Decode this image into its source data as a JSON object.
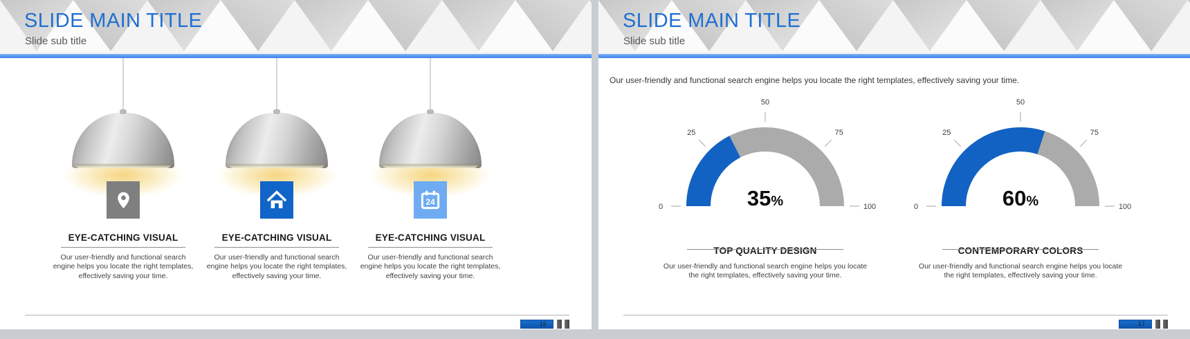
{
  "colors": {
    "title_blue": "#1f6fd2",
    "accent_bar_blue": "#4189f0",
    "heading_text": "#1a1a1a",
    "body_text": "#3f3f3f",
    "gauge_blue": "#1262c4",
    "gauge_track_gray": "#ababab",
    "icon_gray": "#7f7f7f",
    "icon_blue": "#1164c8",
    "icon_light_blue": "#6fabf2",
    "page_badge_blue": "#1565c4",
    "lamp_glow_yellow": "#f5d276"
  },
  "slides": [
    {
      "name": "lamps-slide",
      "title": "SLIDE MAIN TITLE",
      "subtitle": "Slide sub title",
      "page_number": "16",
      "columns": [
        {
          "icon": "location-pin-icon",
          "heading": "EYE-CATCHING VISUAL",
          "body": "Our user-friendly and functional search engine helps you locate the right templates, effectively saving your time."
        },
        {
          "icon": "home-icon",
          "heading": "EYE-CATCHING VISUAL",
          "body": "Our user-friendly and functional search engine helps you locate the right templates, effectively saving your time."
        },
        {
          "icon": "calendar-icon",
          "calendar_day": "24",
          "heading": "EYE-CATCHING VISUAL",
          "body": "Our user-friendly and functional search engine helps you locate the right templates, effectively saving your time."
        }
      ]
    },
    {
      "name": "gauges-slide",
      "title": "SLIDE MAIN TITLE",
      "subtitle": "Slide sub title",
      "intro": "Our user-friendly and functional search engine helps you locate the right templates, effectively saving your time.",
      "page_number": "17",
      "gauges": [
        {
          "heading": "TOP QUALITY DESIGN",
          "body": "Our user-friendly and functional search engine helps you locate the right templates, effectively saving your time."
        },
        {
          "heading": "CONTEMPORARY COLORS",
          "body": "Our user-friendly and functional search engine helps you locate the right templates, effectively saving your time."
        }
      ]
    }
  ],
  "chart_data": [
    {
      "type": "gauge",
      "title": "TOP QUALITY DESIGN",
      "value": 35,
      "unit": "%",
      "min": 0,
      "max": 100,
      "ticks": [
        0,
        25,
        50,
        75,
        100
      ],
      "layout": "semicircle",
      "color_filled": "#1262c4",
      "color_track": "#ababab"
    },
    {
      "type": "gauge",
      "title": "CONTEMPORARY COLORS",
      "value": 60,
      "unit": "%",
      "min": 0,
      "max": 100,
      "ticks": [
        0,
        25,
        50,
        75,
        100
      ],
      "layout": "semicircle",
      "color_filled": "#1262c4",
      "color_track": "#ababab"
    }
  ]
}
